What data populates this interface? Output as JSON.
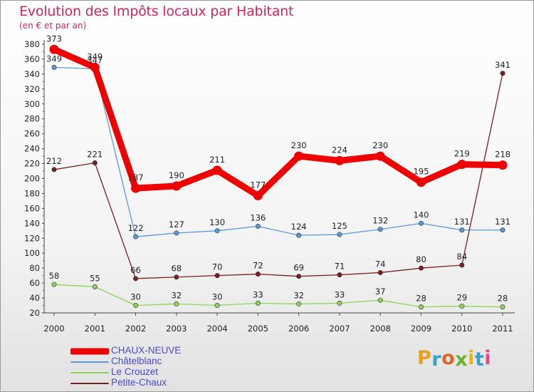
{
  "title": "Evolution des Impôts locaux par Habitant",
  "subtitle": "(en € et par an)",
  "logo": {
    "text": "Proxiti",
    "colors": [
      "#e8a21c",
      "#3aa0c8",
      "#e0632a",
      "#6cb22e",
      "#f0b400",
      "#3aa0c8",
      "#e04a8c"
    ]
  },
  "chart_data": {
    "type": "line",
    "title": "Evolution des Impôts locaux par Habitant",
    "subtitle": "(en € et par an)",
    "x": [
      "2000",
      "2001",
      "2002",
      "2003",
      "2004",
      "2005",
      "2006",
      "2007",
      "2008",
      "2009",
      "2010",
      "2011"
    ],
    "ylim": [
      20,
      380
    ],
    "yticks": [
      20,
      40,
      60,
      80,
      100,
      120,
      140,
      160,
      180,
      200,
      220,
      240,
      260,
      280,
      300,
      320,
      340,
      360,
      380
    ],
    "grid": false,
    "legend": "bottom-left",
    "series": [
      {
        "name": "CHAUX-NEUVE",
        "color": "#ee0000",
        "emphasis": true,
        "values": [
          373,
          349,
          187,
          190,
          211,
          177,
          230,
          224,
          230,
          195,
          219,
          218
        ],
        "labels": [
          "373",
          "349",
          "187",
          "190",
          "211",
          "177",
          "230",
          "224",
          "230",
          "195",
          "219",
          "218"
        ]
      },
      {
        "name": "Châtelblanc",
        "color": "#5a9ad8",
        "emphasis": false,
        "values": [
          349,
          347,
          122,
          127,
          130,
          136,
          124,
          125,
          132,
          140,
          131,
          131
        ],
        "labels": [
          "349",
          "347",
          "122",
          "127",
          "130",
          "136",
          "124",
          "125",
          "132",
          "140",
          "131",
          "131"
        ]
      },
      {
        "name": "Le Crouzet",
        "color": "#8fd45a",
        "emphasis": false,
        "values": [
          58,
          55,
          30,
          32,
          30,
          33,
          32,
          33,
          37,
          28,
          29,
          28
        ],
        "labels": [
          "58",
          "55",
          "30",
          "32",
          "30",
          "33",
          "32",
          "33",
          "37",
          "28",
          "29",
          "28"
        ]
      },
      {
        "name": "Petite-Chaux",
        "color": "#7a1f1f",
        "emphasis": false,
        "values": [
          212,
          221,
          66,
          68,
          70,
          72,
          69,
          71,
          74,
          80,
          84,
          341
        ],
        "labels": [
          "212",
          "221",
          "66",
          "68",
          "70",
          "72",
          "69",
          "71",
          "74",
          "80",
          "84",
          "341"
        ]
      }
    ]
  }
}
